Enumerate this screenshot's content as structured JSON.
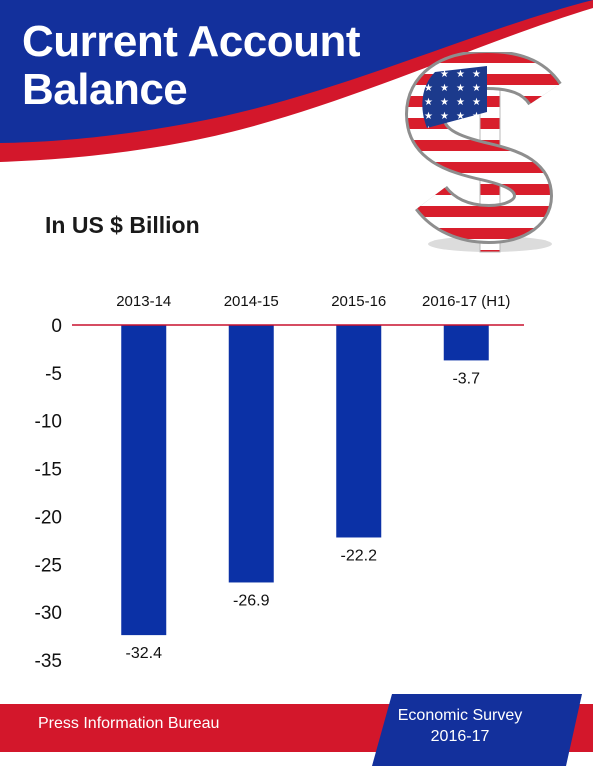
{
  "header": {
    "title_line1": "Current Account",
    "title_line2": "Balance",
    "unit_label": "In US $ Billion"
  },
  "footer": {
    "publisher": "Press Information Bureau",
    "source_line1": "Economic Survey",
    "source_line2": "2016-17"
  },
  "colors": {
    "bar": "#0b31a6",
    "header_blue": "#13309c",
    "accent_red": "#d3172b",
    "zero_line": "#c8102e"
  },
  "icons": [
    "us-flag-dollar-sign-icon"
  ],
  "chart_data": {
    "type": "bar",
    "categories": [
      "2013-14",
      "2014-15",
      "2015-16",
      "2016-17 (H1)"
    ],
    "values": [
      -32.4,
      -26.9,
      -22.2,
      -3.7
    ],
    "data_labels": [
      "-32.4",
      "-26.9",
      "-22.2",
      "-3.7"
    ],
    "title": "Current Account Balance",
    "ylabel": "In US $ Billion",
    "xlabel": "",
    "ylim": [
      -35,
      0
    ],
    "yticks": [
      0,
      -5,
      -10,
      -15,
      -20,
      -25,
      -30,
      -35
    ],
    "ytick_labels": [
      "0",
      "-5",
      "-10",
      "-15",
      "-20",
      "-25",
      "-30",
      "-35"
    ],
    "category_axis_position": "top",
    "grid": false,
    "legend": "none"
  }
}
